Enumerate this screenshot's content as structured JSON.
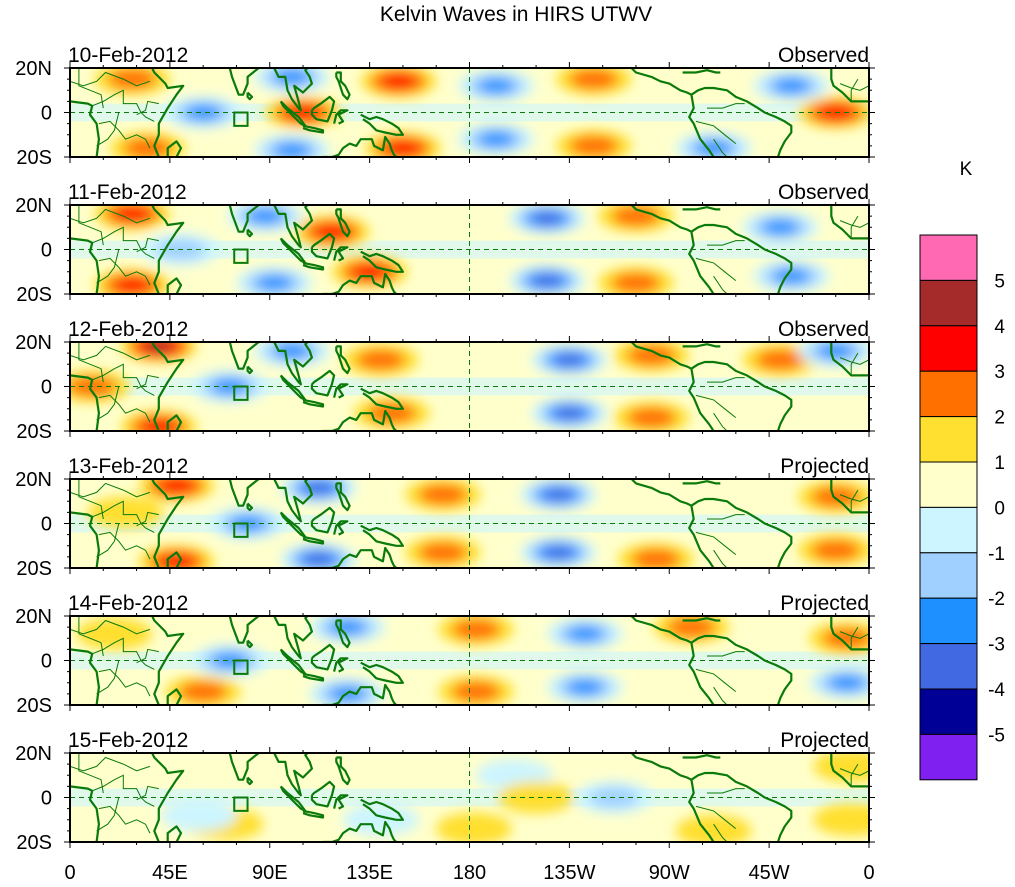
{
  "chart_data": {
    "type": "heatmap",
    "title": "Kelvin Waves in HIRS UTWV",
    "xlabel": "",
    "ylabel": "",
    "x_range_deg_east": [
      0,
      360
    ],
    "y_range_deg": [
      -20,
      20
    ],
    "x_ticks": [
      "0",
      "45E",
      "90E",
      "135E",
      "180",
      "135W",
      "90W",
      "45W",
      "0"
    ],
    "y_ticks": [
      "20N",
      "0",
      "20S"
    ],
    "grid": false,
    "reference_lines": [
      "equator (dashed)",
      "180 meridian (dashed)"
    ],
    "colorbar": {
      "unit": "K",
      "placement": "right",
      "levels": [
        5,
        4,
        3,
        2,
        1,
        0,
        -1,
        -2,
        -3,
        -4,
        -5
      ],
      "colors": [
        "#ff69b4",
        "#a52a2a",
        "#ff0000",
        "#ff7000",
        "#ffdf2f",
        "#ffffcc",
        "#ccf5ff",
        "#a0d0ff",
        "#1e90ff",
        "#4169e1",
        "#000096",
        "#8020f0"
      ]
    },
    "panels": [
      {
        "date": "10-Feb-2012",
        "status": "Observed",
        "anomalies": [
          {
            "lon": 105,
            "lat": 0,
            "value": 3
          },
          {
            "lon": 148,
            "lat": 14,
            "value": 3
          },
          {
            "lon": 150,
            "lat": -16,
            "value": 3
          },
          {
            "lon": 60,
            "lat": 0,
            "value": -3
          },
          {
            "lon": 100,
            "lat": 16,
            "value": -3
          },
          {
            "lon": 100,
            "lat": -17,
            "value": -3
          },
          {
            "lon": 192,
            "lat": 12,
            "value": -3
          },
          {
            "lon": 192,
            "lat": -12,
            "value": -3
          },
          {
            "lon": 236,
            "lat": 15,
            "value": 2
          },
          {
            "lon": 236,
            "lat": -15,
            "value": 2
          },
          {
            "lon": 290,
            "lat": -16,
            "value": -3
          },
          {
            "lon": 325,
            "lat": 12,
            "value": -3
          },
          {
            "lon": 345,
            "lat": 0,
            "value": 3
          },
          {
            "lon": 35,
            "lat": -16,
            "value": 2
          },
          {
            "lon": 28,
            "lat": 15,
            "value": 2
          }
        ]
      },
      {
        "date": "11-Feb-2012",
        "status": "Observed",
        "anomalies": [
          {
            "lon": 28,
            "lat": 16,
            "value": 3
          },
          {
            "lon": 28,
            "lat": -16,
            "value": 3
          },
          {
            "lon": 118,
            "lat": 8,
            "value": 3
          },
          {
            "lon": 135,
            "lat": -10,
            "value": 3
          },
          {
            "lon": 88,
            "lat": 15,
            "value": -3
          },
          {
            "lon": 92,
            "lat": -15,
            "value": -3
          },
          {
            "lon": 215,
            "lat": 14,
            "value": -4
          },
          {
            "lon": 215,
            "lat": -14,
            "value": -4
          },
          {
            "lon": 255,
            "lat": 15,
            "value": 2
          },
          {
            "lon": 255,
            "lat": -15,
            "value": 2
          },
          {
            "lon": 320,
            "lat": 10,
            "value": -3
          },
          {
            "lon": 325,
            "lat": -12,
            "value": -3
          },
          {
            "lon": 50,
            "lat": 0,
            "value": -2
          }
        ]
      },
      {
        "date": "12-Feb-2012",
        "status": "Observed",
        "anomalies": [
          {
            "lon": 40,
            "lat": 18,
            "value": 4
          },
          {
            "lon": 40,
            "lat": -18,
            "value": 3
          },
          {
            "lon": 140,
            "lat": 12,
            "value": 2
          },
          {
            "lon": 145,
            "lat": -12,
            "value": 2
          },
          {
            "lon": 72,
            "lat": 0,
            "value": -3
          },
          {
            "lon": 100,
            "lat": 16,
            "value": -3
          },
          {
            "lon": 225,
            "lat": 12,
            "value": -4
          },
          {
            "lon": 225,
            "lat": -12,
            "value": -4
          },
          {
            "lon": 262,
            "lat": 14,
            "value": 2
          },
          {
            "lon": 262,
            "lat": -14,
            "value": 2
          },
          {
            "lon": 320,
            "lat": 12,
            "value": 2
          },
          {
            "lon": 345,
            "lat": 16,
            "value": -3
          },
          {
            "lon": 10,
            "lat": 0,
            "value": 2
          }
        ]
      },
      {
        "date": "13-Feb-2012",
        "status": "Projected",
        "anomalies": [
          {
            "lon": 48,
            "lat": 17,
            "value": 3
          },
          {
            "lon": 48,
            "lat": -17,
            "value": 3
          },
          {
            "lon": 80,
            "lat": 0,
            "value": -3
          },
          {
            "lon": 112,
            "lat": 16,
            "value": -4
          },
          {
            "lon": 112,
            "lat": -16,
            "value": -4
          },
          {
            "lon": 168,
            "lat": 13,
            "value": 2
          },
          {
            "lon": 168,
            "lat": -13,
            "value": 2
          },
          {
            "lon": 220,
            "lat": 13,
            "value": -4
          },
          {
            "lon": 220,
            "lat": -13,
            "value": -4
          },
          {
            "lon": 264,
            "lat": -16,
            "value": 2
          },
          {
            "lon": 345,
            "lat": 12,
            "value": 2
          },
          {
            "lon": 345,
            "lat": -12,
            "value": 2
          },
          {
            "lon": 25,
            "lat": 5,
            "value": 1
          }
        ]
      },
      {
        "date": "14-Feb-2012",
        "status": "Projected",
        "anomalies": [
          {
            "lon": 60,
            "lat": -14,
            "value": 2
          },
          {
            "lon": 72,
            "lat": 0,
            "value": -3
          },
          {
            "lon": 125,
            "lat": 15,
            "value": -3
          },
          {
            "lon": 125,
            "lat": -15,
            "value": -3
          },
          {
            "lon": 183,
            "lat": 14,
            "value": 2
          },
          {
            "lon": 183,
            "lat": -14,
            "value": 2
          },
          {
            "lon": 232,
            "lat": 12,
            "value": -3
          },
          {
            "lon": 232,
            "lat": -12,
            "value": -3
          },
          {
            "lon": 280,
            "lat": 15,
            "value": 2
          },
          {
            "lon": 350,
            "lat": 10,
            "value": 2
          },
          {
            "lon": 350,
            "lat": -10,
            "value": -3
          },
          {
            "lon": 20,
            "lat": 12,
            "value": 1
          }
        ]
      },
      {
        "date": "15-Feb-2012",
        "status": "Projected",
        "anomalies": [
          {
            "lon": 70,
            "lat": -12,
            "value": 1
          },
          {
            "lon": 58,
            "lat": -8,
            "value": -1
          },
          {
            "lon": 140,
            "lat": -10,
            "value": -1
          },
          {
            "lon": 200,
            "lat": 10,
            "value": -1
          },
          {
            "lon": 210,
            "lat": 0,
            "value": 1
          },
          {
            "lon": 245,
            "lat": 0,
            "value": -2
          },
          {
            "lon": 290,
            "lat": -15,
            "value": 1
          },
          {
            "lon": 352,
            "lat": 14,
            "value": 1
          },
          {
            "lon": 352,
            "lat": -10,
            "value": 1
          },
          {
            "lon": 182,
            "lat": -14,
            "value": 1
          }
        ]
      }
    ]
  }
}
